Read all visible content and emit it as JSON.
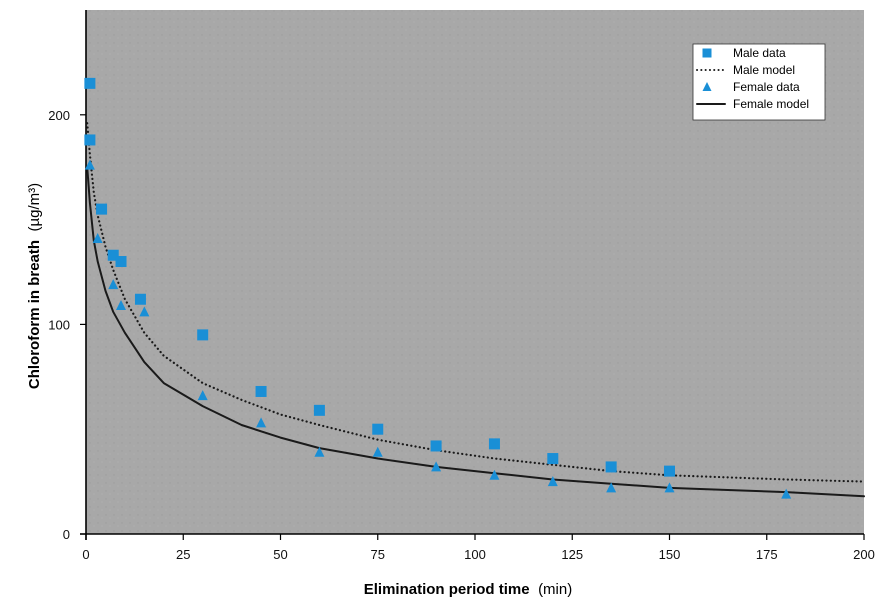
{
  "chart_data": {
    "type": "scatter",
    "xlabel_bold": "Elimination period time",
    "xlabel_unit": "(min)",
    "ylabel_bold": "Chloroform in breath",
    "ylabel_unit": "(µg/m³)",
    "xlim": [
      0,
      200
    ],
    "ylim": [
      0,
      250
    ],
    "x_ticks": [
      0,
      25,
      50,
      75,
      100,
      125,
      150,
      175,
      200
    ],
    "y_ticks": [
      0,
      100,
      200
    ],
    "grid": false,
    "legend_position": "top-right",
    "colors": {
      "plot_background": "#a9a9a9",
      "male_marker": "#1a8fd6",
      "female_marker": "#1a8fd6",
      "model_line": "#1a1a1a"
    },
    "series": [
      {
        "name": "Male data",
        "kind": "points",
        "marker": "square",
        "x": [
          1,
          1,
          4,
          7,
          9,
          14,
          30,
          45,
          60,
          75,
          90,
          105,
          120,
          135,
          150
        ],
        "y": [
          215,
          188,
          155,
          133,
          130,
          112,
          95,
          68,
          59,
          50,
          42,
          43,
          36,
          32,
          30
        ]
      },
      {
        "name": "Male model",
        "kind": "line",
        "style": "dotted",
        "x": [
          0.3,
          1,
          2,
          3,
          5,
          7,
          10,
          15,
          20,
          30,
          40,
          50,
          60,
          75,
          90,
          105,
          120,
          135,
          150,
          165,
          180,
          200
        ],
        "y": [
          196,
          181,
          163,
          152,
          137,
          126,
          112,
          96,
          85,
          72,
          64,
          57,
          52,
          45,
          40,
          36,
          33,
          30,
          28,
          27,
          26,
          25
        ]
      },
      {
        "name": "Female data",
        "kind": "points",
        "marker": "triangle",
        "x": [
          1,
          3,
          7,
          9,
          15,
          30,
          45,
          60,
          75,
          90,
          105,
          120,
          135,
          150,
          180
        ],
        "y": [
          176,
          141,
          119,
          109,
          106,
          66,
          53,
          39,
          39,
          32,
          28,
          25,
          22,
          22,
          19
        ]
      },
      {
        "name": "Female model",
        "kind": "line",
        "style": "solid",
        "x": [
          0.3,
          1,
          2,
          3,
          5,
          7,
          10,
          15,
          20,
          30,
          40,
          50,
          60,
          75,
          90,
          105,
          120,
          135,
          150,
          165,
          180,
          200
        ],
        "y": [
          175,
          158,
          140,
          130,
          116,
          106,
          96,
          82,
          72,
          61,
          52,
          46,
          41,
          36,
          32,
          29,
          26,
          24,
          22,
          21,
          20,
          18
        ]
      }
    ]
  }
}
